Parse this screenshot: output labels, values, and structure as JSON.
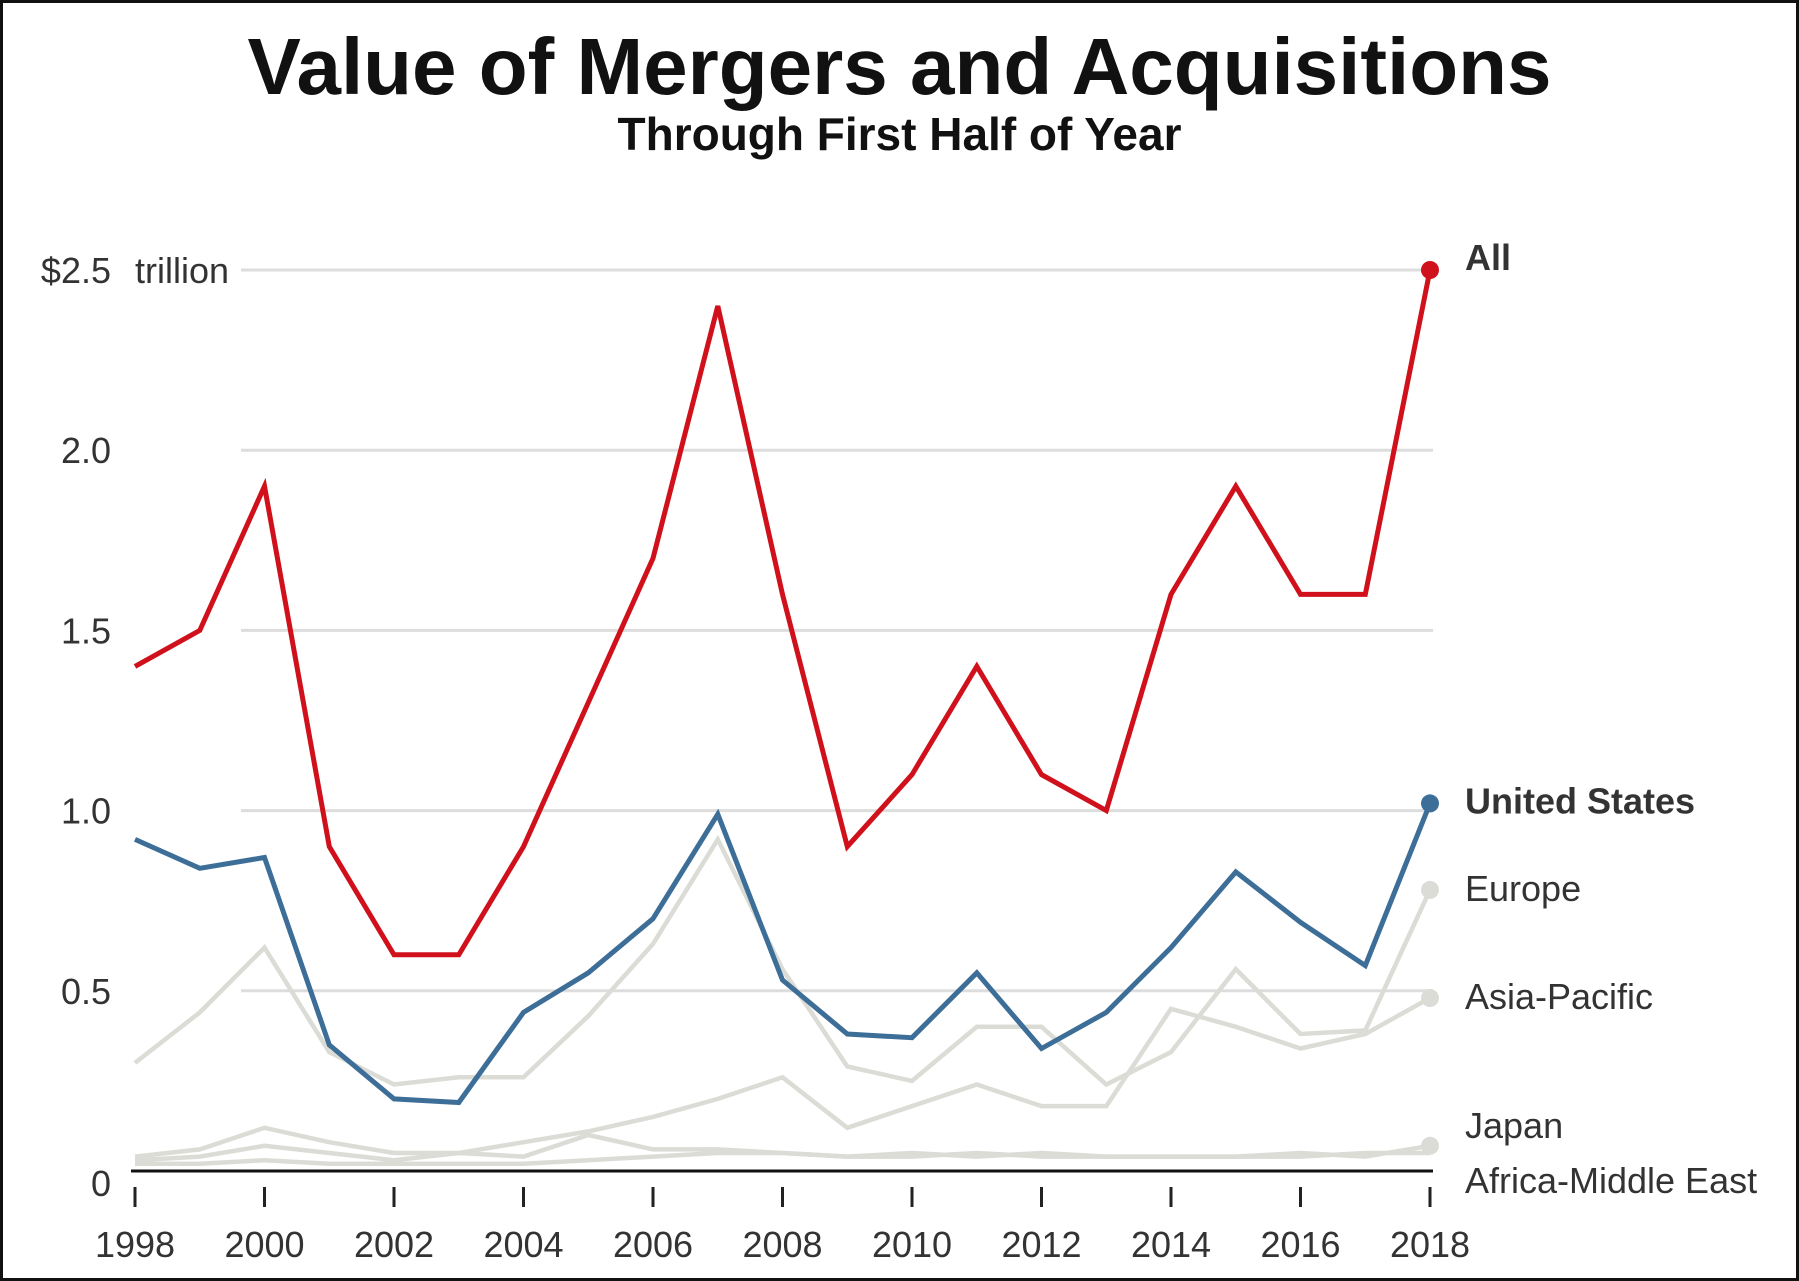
{
  "chart_data": {
    "type": "line",
    "title": "Value of Mergers and Acquisitions",
    "subtitle": "Through First Half of Year",
    "unit_label": "trillion",
    "xlabel": "",
    "ylabel": "",
    "ylim": [
      0,
      2.5
    ],
    "xlim": [
      1998,
      2018
    ],
    "x": [
      1998,
      1999,
      2000,
      2001,
      2002,
      2003,
      2004,
      2005,
      2006,
      2007,
      2008,
      2009,
      2010,
      2011,
      2012,
      2013,
      2014,
      2015,
      2016,
      2017,
      2018
    ],
    "x_ticks": [
      1998,
      2000,
      2002,
      2004,
      2006,
      2008,
      2010,
      2012,
      2014,
      2016,
      2018
    ],
    "x_tick_labels": [
      "1998",
      "2000",
      "2002",
      "2004",
      "2006",
      "2008",
      "2010",
      "2012",
      "2014",
      "2016",
      "2018"
    ],
    "y_ticks": [
      0,
      0.5,
      1.0,
      1.5,
      2.0,
      2.5
    ],
    "y_tick_labels": [
      "0",
      "0.5",
      "1.0",
      "1.5",
      "2.0",
      "$2.5"
    ],
    "grid": true,
    "series": [
      {
        "name": "Africa-Middle East",
        "color": "#dcdcd6",
        "emphasis": "muted",
        "values": [
          0.02,
          0.02,
          0.03,
          0.02,
          0.02,
          0.02,
          0.02,
          0.03,
          0.04,
          0.05,
          0.05,
          0.04,
          0.05,
          0.04,
          0.05,
          0.04,
          0.04,
          0.04,
          0.04,
          0.05,
          0.05
        ]
      },
      {
        "name": "Japan",
        "color": "#dcdcd6",
        "emphasis": "muted",
        "values": [
          0.04,
          0.06,
          0.12,
          0.08,
          0.05,
          0.05,
          0.04,
          0.1,
          0.06,
          0.06,
          0.05,
          0.04,
          0.04,
          0.05,
          0.04,
          0.04,
          0.04,
          0.04,
          0.05,
          0.04,
          0.07
        ]
      },
      {
        "name": "Asia-Pacific",
        "color": "#dcdcd6",
        "emphasis": "muted",
        "values": [
          0.03,
          0.04,
          0.07,
          0.05,
          0.03,
          0.05,
          0.08,
          0.11,
          0.15,
          0.2,
          0.26,
          0.12,
          0.18,
          0.24,
          0.18,
          0.18,
          0.45,
          0.4,
          0.34,
          0.38,
          0.48
        ]
      },
      {
        "name": "Europe",
        "color": "#dcdcd6",
        "emphasis": "muted",
        "values": [
          0.3,
          0.44,
          0.62,
          0.33,
          0.24,
          0.26,
          0.26,
          0.43,
          0.63,
          0.92,
          0.56,
          0.29,
          0.25,
          0.4,
          0.4,
          0.24,
          0.33,
          0.56,
          0.38,
          0.39,
          0.78
        ]
      },
      {
        "name": "United States",
        "color": "#3d6e98",
        "emphasis": "highlight",
        "values": [
          0.92,
          0.84,
          0.87,
          0.35,
          0.2,
          0.19,
          0.44,
          0.55,
          0.7,
          0.99,
          0.53,
          0.38,
          0.37,
          0.55,
          0.34,
          0.44,
          0.62,
          0.83,
          0.69,
          0.57,
          1.02
        ]
      },
      {
        "name": "All",
        "color": "#d0111b",
        "emphasis": "primary",
        "values": [
          1.4,
          1.5,
          1.9,
          0.9,
          0.6,
          0.6,
          0.9,
          1.3,
          1.7,
          2.4,
          1.6,
          0.9,
          1.1,
          1.4,
          1.1,
          1.0,
          1.6,
          1.9,
          1.6,
          1.6,
          2.5
        ]
      }
    ]
  }
}
